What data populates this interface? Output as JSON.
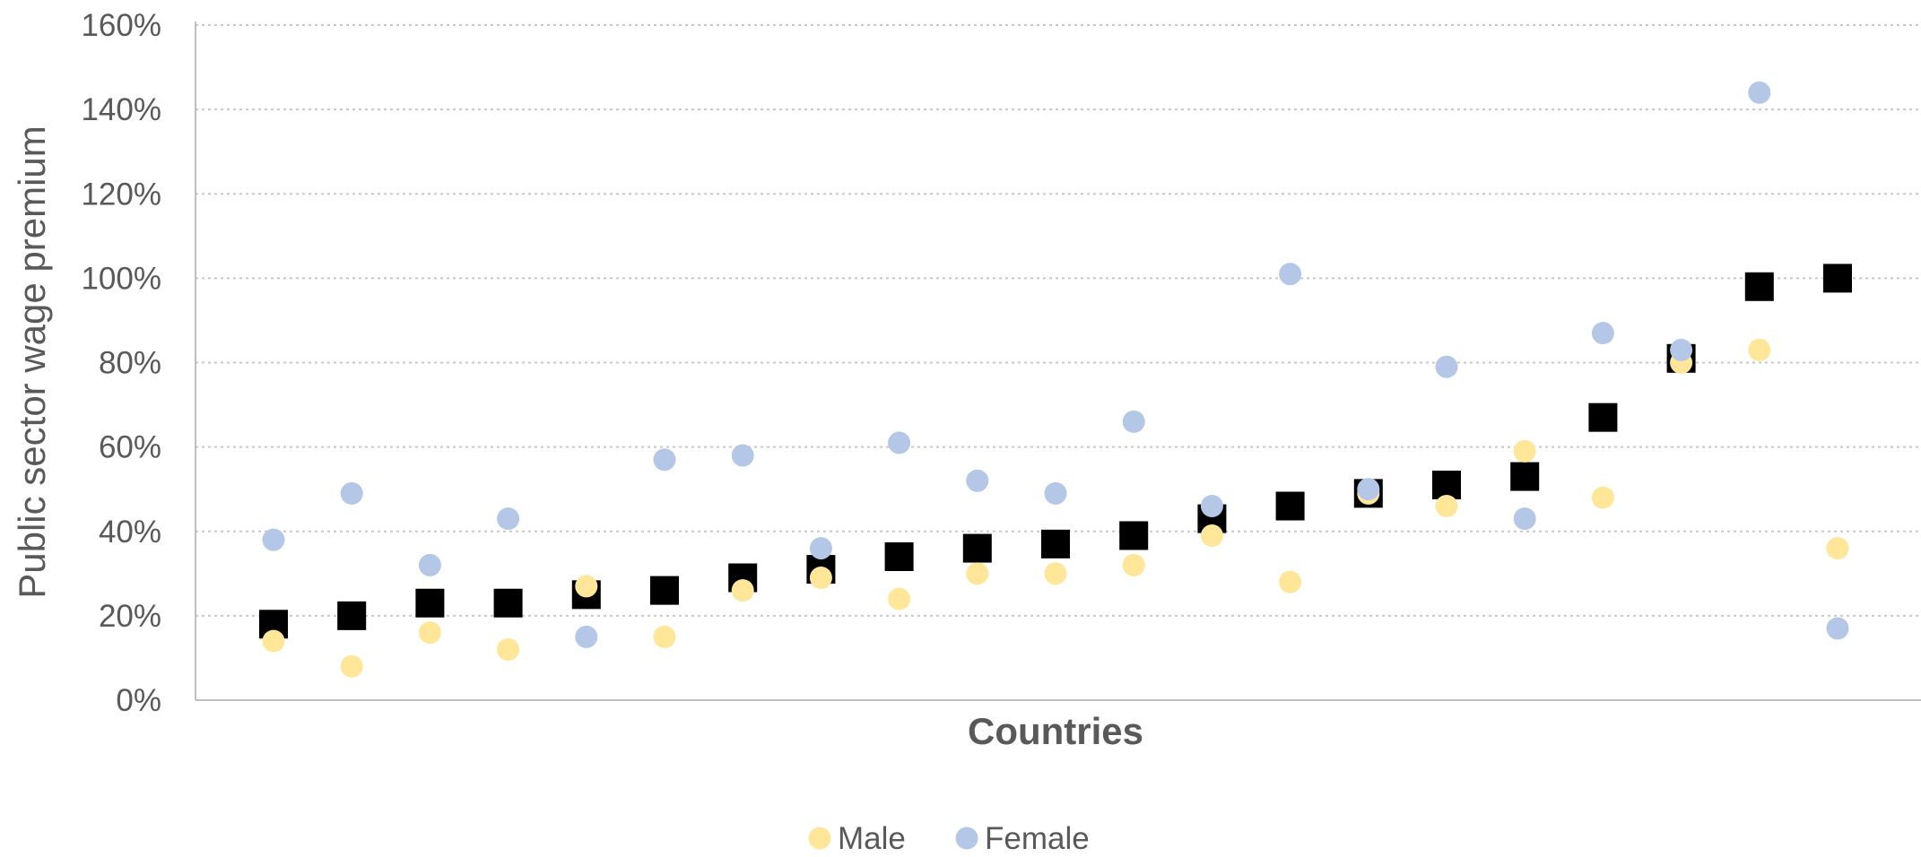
{
  "chart_data": {
    "type": "scatter",
    "title": "",
    "xlabel": "Countries",
    "ylabel": "Public sector wage premium",
    "ylim": [
      0,
      1.6
    ],
    "yticks": [
      0,
      0.2,
      0.4,
      0.6,
      0.8,
      1.0,
      1.2,
      1.4,
      1.6
    ],
    "ytick_labels": [
      "0%",
      "20%",
      "40%",
      "60%",
      "80%",
      "100%",
      "120%",
      "140%",
      "160%"
    ],
    "x_tick_labels_shown": false,
    "grid": "horizontal-dotted",
    "legend_position": "bottom",
    "n_countries": 21,
    "series": [
      {
        "marker": "square",
        "color": "#000000",
        "values": [
          0.18,
          0.2,
          0.23,
          0.23,
          0.25,
          0.26,
          0.29,
          0.31,
          0.34,
          0.36,
          0.37,
          0.39,
          0.43,
          0.46,
          0.49,
          0.51,
          0.53,
          0.67,
          0.81,
          0.98,
          1.0
        ]
      },
      {
        "name": "Male",
        "marker": "circle",
        "color": "#FFE699",
        "values": [
          0.14,
          0.08,
          0.16,
          0.12,
          0.27,
          0.15,
          0.26,
          0.29,
          0.24,
          0.3,
          0.3,
          0.32,
          0.39,
          0.28,
          0.49,
          0.46,
          0.59,
          0.48,
          0.8,
          0.83,
          0.36
        ]
      },
      {
        "name": "Female",
        "marker": "circle",
        "color": "#B4C7E7",
        "values": [
          0.38,
          0.49,
          0.32,
          0.43,
          0.15,
          0.57,
          0.58,
          0.36,
          0.61,
          0.52,
          0.49,
          0.66,
          0.46,
          1.01,
          0.5,
          0.79,
          0.43,
          0.87,
          0.83,
          1.44,
          0.17
        ]
      }
    ]
  }
}
